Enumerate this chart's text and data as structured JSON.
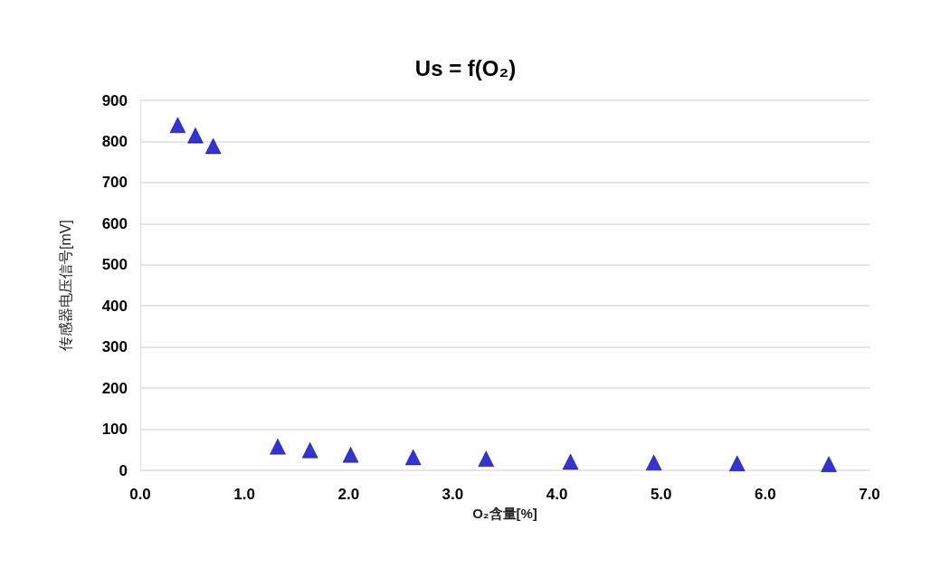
{
  "chart_data": {
    "type": "scatter",
    "title": "Us = f(O₂)",
    "xlabel": "O₂含量[%]",
    "ylabel": "传感器电压信号[mV]",
    "x": [
      0.36,
      0.53,
      0.7,
      1.32,
      1.63,
      2.02,
      2.62,
      3.32,
      4.13,
      4.93,
      5.73,
      6.61
    ],
    "series": [
      {
        "color": "#0000cc",
        "values": [
          840,
          815,
          789,
          58,
          49,
          38,
          32,
          28,
          21,
          19,
          17,
          15
        ]
      }
    ],
    "xlim": [
      0,
      7
    ],
    "xticks": [
      {
        "value": 0,
        "label": "0.0"
      },
      {
        "value": 1,
        "label": "1.0"
      },
      {
        "value": 2,
        "label": "2.0"
      },
      {
        "value": 3,
        "label": "3.0"
      },
      {
        "value": 4,
        "label": "4.0"
      },
      {
        "value": 5,
        "label": "5.0"
      },
      {
        "value": 6,
        "label": "6.0"
      },
      {
        "value": 7,
        "label": "7.0"
      }
    ],
    "ylim": [
      0,
      900
    ],
    "yticks": [
      0,
      100,
      200,
      300,
      400,
      500,
      600,
      700,
      800,
      900
    ],
    "grid": "y",
    "marker": "triangle"
  }
}
